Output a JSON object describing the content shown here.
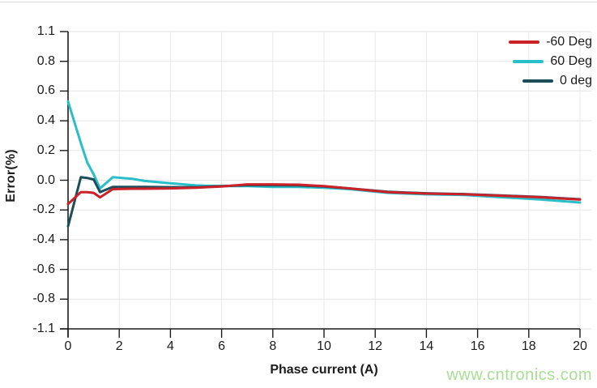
{
  "figure": {
    "watermark": "www.cntronics.com",
    "colors": {
      "watermark": "#a9de94",
      "axis": "#1c1c1c",
      "grid": "#e8e8eb",
      "background": "#ffffff"
    }
  },
  "chart_data": {
    "type": "line",
    "title": "",
    "xlabel": "Phase current (A)",
    "ylabel": "Error(%)",
    "xlim": [
      0,
      20
    ],
    "grid": true,
    "legend_position": "top-right",
    "x_ticks": [
      0,
      2,
      4,
      6,
      8,
      10,
      12,
      14,
      16,
      18,
      20
    ],
    "y_ticks": [
      1.1,
      0.8,
      0.6,
      0.4,
      0.2,
      0.0,
      -0.2,
      -0.4,
      -0.6,
      -0.8,
      -1.1
    ],
    "y_tick_labels": [
      "1.1",
      "0.8",
      "0.6",
      "0.4",
      "0.2",
      "0.0",
      "-0.2",
      "-0.4",
      "-0.6",
      "-0.8",
      "-1.1"
    ],
    "x": [
      0,
      0.5,
      0.75,
      1,
      1.25,
      1.75,
      2.5,
      3,
      4,
      5,
      6,
      7,
      8,
      9,
      10,
      11,
      12.5,
      14,
      15.5,
      17,
      18.5,
      20
    ],
    "series": [
      {
        "name": "-60 Deg",
        "color": "#cb2129",
        "values": [
          -0.16,
          -0.08,
          -0.08,
          -0.085,
          -0.115,
          -0.06,
          -0.057,
          -0.057,
          -0.055,
          -0.05,
          -0.042,
          -0.028,
          -0.028,
          -0.03,
          -0.04,
          -0.055,
          -0.08,
          -0.09,
          -0.095,
          -0.105,
          -0.115,
          -0.13
        ]
      },
      {
        "name": "60 Deg",
        "color": "#29bfc9",
        "values": [
          0.53,
          0.25,
          0.12,
          0.04,
          -0.055,
          0.02,
          0.01,
          -0.005,
          -0.02,
          -0.035,
          -0.04,
          -0.04,
          -0.045,
          -0.045,
          -0.05,
          -0.06,
          -0.085,
          -0.095,
          -0.1,
          -0.115,
          -0.13,
          -0.15
        ]
      },
      {
        "name": "0 deg",
        "color": "#1e4d5a",
        "values": [
          -0.31,
          0.02,
          0.015,
          0.005,
          -0.08,
          -0.045,
          -0.045,
          -0.045,
          -0.047,
          -0.047,
          -0.04,
          -0.033,
          -0.033,
          -0.035,
          -0.042,
          -0.055,
          -0.078,
          -0.088,
          -0.093,
          -0.103,
          -0.113,
          -0.128
        ]
      }
    ],
    "draw_order": [
      1,
      2,
      0
    ]
  }
}
